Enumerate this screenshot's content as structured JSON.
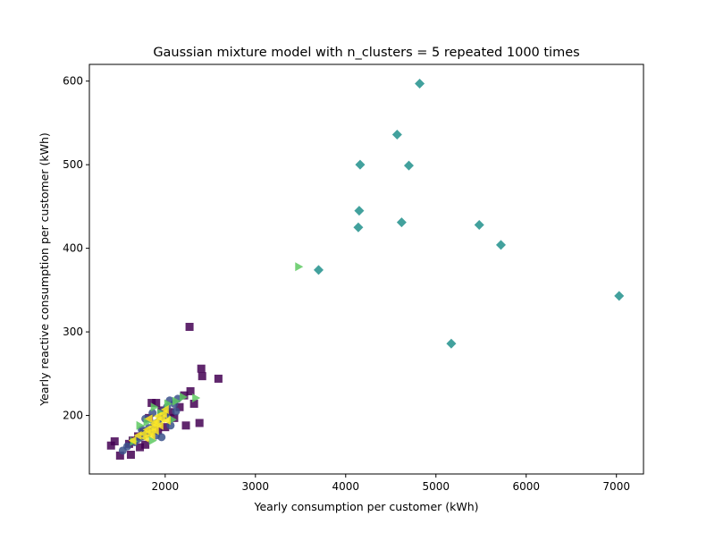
{
  "chart_data": {
    "type": "scatter",
    "title": "Gaussian mixture model with n_clusters = 5 repeated 1000 times",
    "xlabel": "Yearly consumption per customer (kWh)",
    "ylabel": "Yearly reactive consumption per customer (kWh)",
    "xlim": [
      1160,
      7300
    ],
    "ylim": [
      130,
      620
    ],
    "xticks": [
      2000,
      3000,
      4000,
      5000,
      6000,
      7000
    ],
    "yticks": [
      200,
      300,
      400,
      500,
      600
    ],
    "grid": false,
    "legend": "none",
    "series": [
      {
        "marker": "square",
        "color": "#440154",
        "points": [
          [
            2270,
            306
          ],
          [
            2400,
            256
          ],
          [
            2410,
            247
          ],
          [
            2590,
            244
          ],
          [
            2380,
            191
          ],
          [
            2230,
            188
          ],
          [
            1400,
            164
          ],
          [
            1440,
            169
          ],
          [
            1500,
            152
          ],
          [
            1620,
            153
          ],
          [
            1640,
            170
          ],
          [
            1720,
            162
          ],
          [
            1780,
            165
          ],
          [
            1820,
            197
          ],
          [
            1850,
            215
          ],
          [
            1900,
            215
          ],
          [
            1960,
            206
          ],
          [
            2210,
            224
          ],
          [
            2280,
            229
          ],
          [
            2320,
            214
          ],
          [
            1700,
            175
          ],
          [
            1920,
            182
          ],
          [
            2060,
            204
          ],
          [
            2160,
            210
          ],
          [
            1600,
            166
          ],
          [
            2000,
            186
          ],
          [
            1760,
            180
          ],
          [
            2100,
            197
          ]
        ]
      },
      {
        "marker": "circle",
        "color": "#3b528b",
        "points": [
          [
            1530,
            158
          ],
          [
            1580,
            163
          ],
          [
            1660,
            168
          ],
          [
            1700,
            172
          ],
          [
            1750,
            175
          ],
          [
            1800,
            178
          ],
          [
            1850,
            182
          ],
          [
            1880,
            190
          ],
          [
            1920,
            192
          ],
          [
            1950,
            198
          ],
          [
            1980,
            205
          ],
          [
            2020,
            210
          ],
          [
            2050,
            218
          ],
          [
            2100,
            214
          ],
          [
            2120,
            205
          ],
          [
            2000,
            200
          ],
          [
            1960,
            174
          ],
          [
            1900,
            176
          ],
          [
            1820,
            185
          ],
          [
            1780,
            196
          ],
          [
            2060,
            188
          ],
          [
            2140,
            220
          ],
          [
            1740,
            183
          ],
          [
            1860,
            203
          ]
        ]
      },
      {
        "marker": "diamond",
        "color": "#21918c",
        "points": [
          [
            4820,
            597
          ],
          [
            4570,
            536
          ],
          [
            4160,
            500
          ],
          [
            4700,
            499
          ],
          [
            4150,
            445
          ],
          [
            4140,
            425
          ],
          [
            4620,
            431
          ],
          [
            5480,
            428
          ],
          [
            5720,
            404
          ],
          [
            3700,
            374
          ],
          [
            7030,
            343
          ],
          [
            5170,
            286
          ]
        ]
      },
      {
        "marker": "triangle-right",
        "color": "#5ec962",
        "points": [
          [
            3480,
            378
          ],
          [
            1880,
            210
          ],
          [
            1720,
            188
          ],
          [
            2030,
            214
          ],
          [
            2340,
            221
          ],
          [
            2200,
            222
          ],
          [
            1950,
            203
          ],
          [
            2080,
            195
          ],
          [
            1800,
            192
          ],
          [
            1650,
            169
          ],
          [
            1860,
            170
          ],
          [
            2120,
            217
          ]
        ]
      },
      {
        "marker": "triangle-left",
        "color": "#fde725",
        "points": [
          [
            1640,
            170
          ],
          [
            1700,
            176
          ],
          [
            1760,
            178
          ],
          [
            1800,
            183
          ],
          [
            1830,
            180
          ],
          [
            1860,
            186
          ],
          [
            1880,
            190
          ],
          [
            1900,
            193
          ],
          [
            1920,
            199
          ],
          [
            1940,
            188
          ],
          [
            1960,
            196
          ],
          [
            1980,
            202
          ],
          [
            2000,
            207
          ],
          [
            1850,
            176
          ],
          [
            1890,
            182
          ],
          [
            2020,
            194
          ],
          [
            1780,
            173
          ],
          [
            1820,
            196
          ]
        ]
      }
    ]
  }
}
